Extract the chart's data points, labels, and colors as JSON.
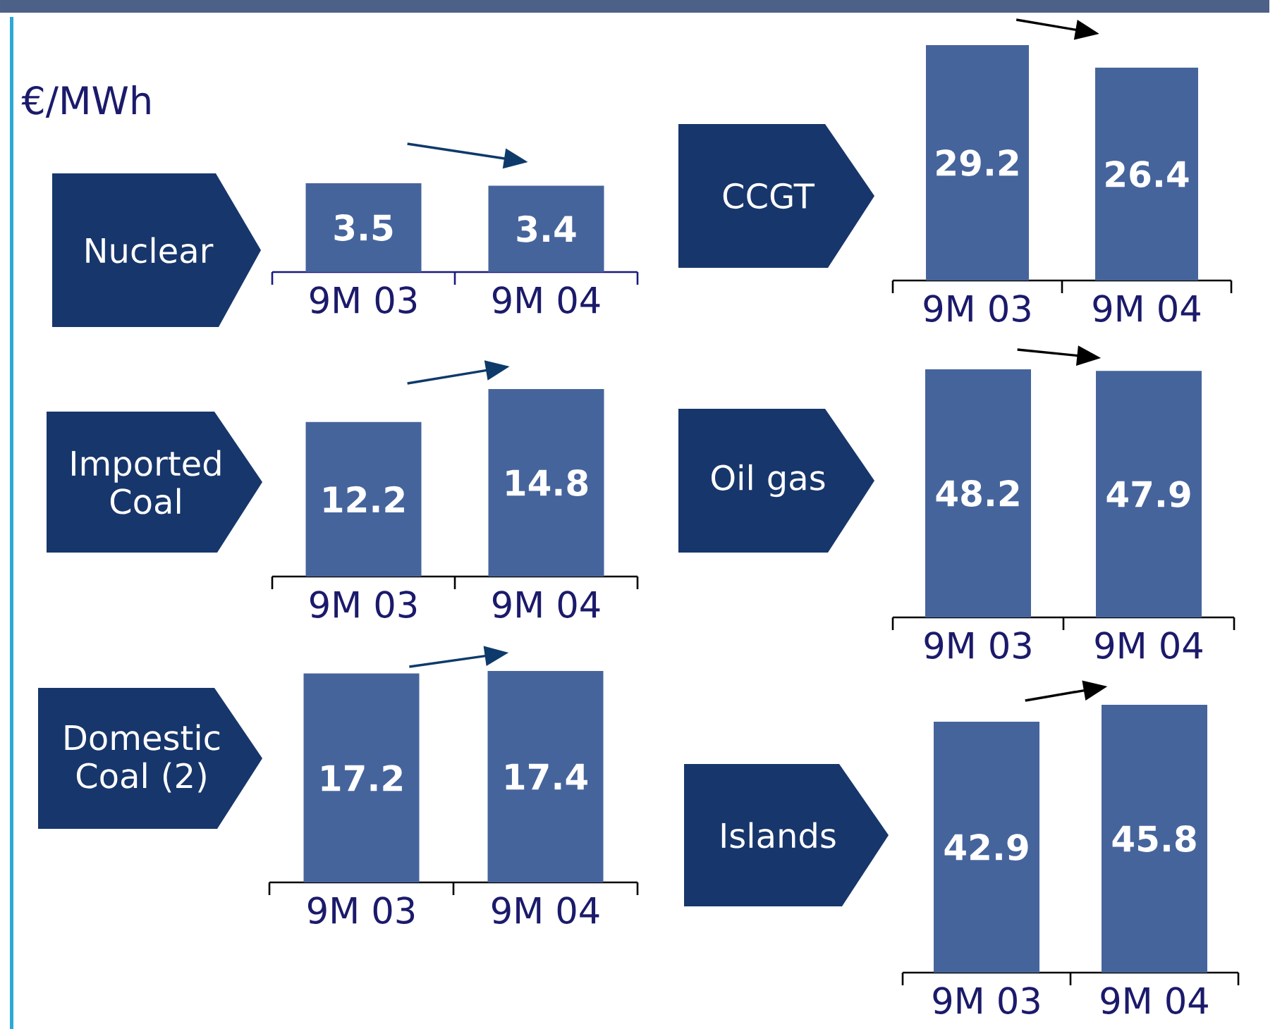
{
  "chart_data": [
    {
      "type": "bar",
      "title": "Nuclear",
      "categories": [
        "9M 03",
        "9M 04"
      ],
      "values": [
        3.5,
        3.4
      ],
      "color": "#46649c",
      "data_labels": true,
      "annotations": [
        "€/MWh"
      ]
    },
    {
      "type": "bar",
      "title": "CCGT",
      "categories": [
        "9M 03",
        "9M 04"
      ],
      "values": [
        29.2,
        26.4
      ],
      "color": "#46649c",
      "data_labels": true
    },
    {
      "type": "bar",
      "title": "Imported Coal",
      "categories": [
        "9M 03",
        "9M 04"
      ],
      "values": [
        12.2,
        14.8
      ],
      "color": "#46649c",
      "data_labels": true
    },
    {
      "type": "bar",
      "title": "Oil gas",
      "categories": [
        "9M 03",
        "9M 04"
      ],
      "values": [
        48.2,
        47.9
      ],
      "color": "#46649c",
      "data_labels": true
    },
    {
      "type": "bar",
      "title": "Domestic Coal (2)",
      "categories": [
        "9M 03",
        "9M 04"
      ],
      "values": [
        17.2,
        17.4
      ],
      "color": "#46649c",
      "data_labels": true
    },
    {
      "type": "bar",
      "title": "Islands",
      "categories": [
        "9M 03",
        "9M 04"
      ],
      "values": [
        42.9,
        45.8
      ],
      "color": "#46649c",
      "data_labels": true
    }
  ]
}
